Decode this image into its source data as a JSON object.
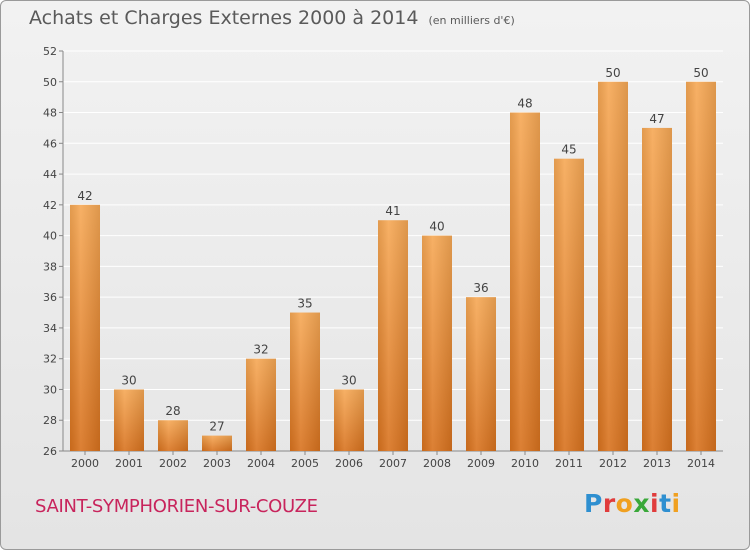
{
  "header": {
    "title": "Achats et Charges Externes 2000 à 2014",
    "unit_note": "(en milliers d'€)"
  },
  "footer": {
    "commune": "SAINT-SYMPHORIEN-SUR-COUZE",
    "logo_letters": [
      "P",
      "r",
      "o",
      "x",
      "i",
      "t",
      "i"
    ],
    "logo_colors": [
      "#2e8fd0",
      "#e03c3c",
      "#f0a020",
      "#3aa83a",
      "#e03c3c",
      "#2e8fd0",
      "#f0a020"
    ]
  },
  "colors": {
    "bar_light": "#f6a855",
    "bar_dark": "#d8721e",
    "grid": "#ffffff",
    "axis_text": "#444444"
  },
  "chart_data": {
    "type": "bar",
    "title": "Achats et Charges Externes 2000 à 2014",
    "subtitle": "(en milliers d'€)",
    "categories": [
      "2000",
      "2001",
      "2002",
      "2003",
      "2004",
      "2005",
      "2006",
      "2007",
      "2008",
      "2009",
      "2010",
      "2011",
      "2012",
      "2013",
      "2014"
    ],
    "values": [
      42,
      30,
      28,
      27,
      32,
      35,
      30,
      41,
      40,
      36,
      48,
      45,
      50,
      47,
      50
    ],
    "ylim": [
      26,
      52
    ],
    "yticks": [
      26,
      28,
      30,
      32,
      34,
      36,
      38,
      40,
      42,
      44,
      46,
      48,
      50,
      52
    ],
    "grid": true,
    "data_labels": true
  }
}
